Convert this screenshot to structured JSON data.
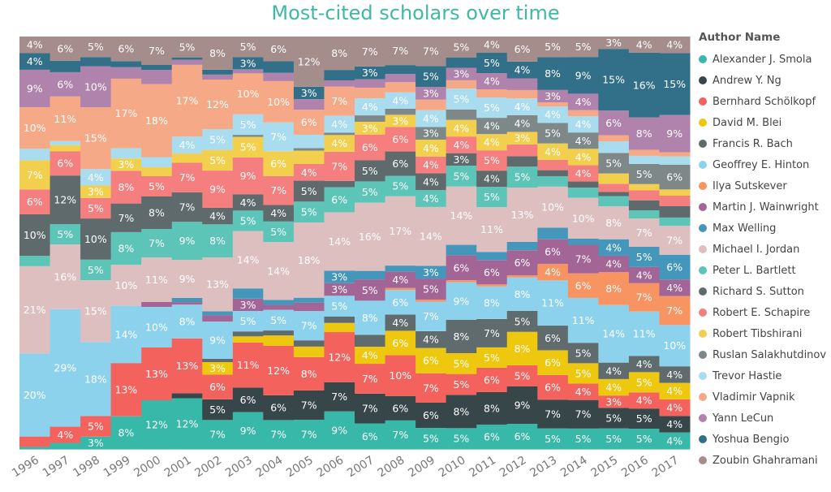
{
  "chart_data": {
    "type": "bar",
    "stacked": "100%",
    "title": "Most-cited scholars over time",
    "legend_title": "Author Name",
    "legend_placement": "right",
    "grid": false,
    "categories": [
      "1996",
      "1997",
      "1998",
      "1999",
      "2000",
      "2001",
      "2002",
      "2003",
      "2004",
      "2005",
      "2006",
      "2007",
      "2008",
      "2009",
      "2010",
      "2011",
      "2012",
      "2013",
      "2014",
      "2015",
      "2016",
      "2017"
    ],
    "series": [
      {
        "name": "Alexander J. Smola",
        "color": "#37B8A8",
        "values": [
          0.5,
          1.5,
          3,
          8,
          12,
          12,
          7,
          9,
          7,
          7,
          9,
          6,
          7,
          5,
          5,
          6,
          6,
          5,
          5,
          5,
          5,
          4
        ]
      },
      {
        "name": "Andrew Y. Ng",
        "color": "#374649",
        "values": [
          0,
          0,
          0,
          0,
          0,
          1.2,
          5,
          6,
          6,
          7,
          7,
          7,
          6,
          6,
          8,
          8,
          9,
          7,
          7,
          5,
          5,
          4
        ]
      },
      {
        "name": "Bernhard Schölkopf",
        "color": "#F4625E",
        "values": [
          2.5,
          4,
          5,
          13,
          13,
          13,
          6,
          11,
          12,
          8,
          12,
          7,
          10,
          7,
          5,
          6,
          5,
          6,
          4,
          3,
          4,
          4
        ]
      },
      {
        "name": "David M. Blei",
        "color": "#EDC80F",
        "values": [
          0,
          0,
          0,
          0,
          0,
          0,
          3,
          1.5,
          2.5,
          2.5,
          2.2,
          4,
          6,
          6,
          5,
          5,
          8,
          6,
          5,
          4,
          5,
          4
        ]
      },
      {
        "name": "Francis R. Bach",
        "color": "#5F6B6D",
        "values": [
          0,
          0,
          0,
          0,
          0,
          0,
          0.8,
          1.2,
          1.2,
          1.5,
          1.5,
          2.8,
          4,
          4,
          8,
          7,
          5,
          6,
          5,
          4,
          4,
          4
        ]
      },
      {
        "name": "Geoffrey E. Hinton",
        "color": "#8DD2EC",
        "values": [
          20,
          29,
          18,
          14,
          10,
          8,
          9,
          5,
          5,
          7,
          5,
          8,
          6,
          7,
          9,
          8,
          8,
          11,
          11,
          14,
          11,
          10
        ]
      },
      {
        "name": "Ilya Sutskever",
        "color": "#F79462",
        "values": [
          0,
          0,
          0,
          0,
          0,
          0,
          0,
          0,
          0,
          0,
          0,
          0,
          0.5,
          0.5,
          0.5,
          0.5,
          0.5,
          4,
          6,
          8,
          7,
          7
        ]
      },
      {
        "name": "Martin J. Wainwright",
        "color": "#A26596",
        "values": [
          0,
          0,
          0,
          0,
          1.2,
          0.6,
          1.5,
          3,
          1.2,
          2,
          3,
          5,
          4,
          5,
          6,
          6,
          6,
          6,
          7,
          4,
          4,
          4
        ]
      },
      {
        "name": "Max Welling",
        "color": "#4497BA",
        "values": [
          0,
          0,
          0,
          0,
          0,
          1,
          1,
          2.5,
          1.2,
          1.2,
          3,
          2,
          1.5,
          3,
          2.5,
          2,
          2,
          2.8,
          1.5,
          4,
          5,
          6
        ]
      },
      {
        "name": "Michael I. Jordan",
        "color": "#DDBFC0",
        "values": [
          21,
          16,
          15,
          10,
          11,
          9,
          13,
          14,
          14,
          18,
          14,
          16,
          17,
          14,
          14,
          11,
          13,
          10,
          10,
          8,
          7,
          7
        ]
      },
      {
        "name": "Peter L. Bartlett",
        "color": "#5CC5B8",
        "values": [
          2.5,
          5,
          5,
          8,
          7,
          9,
          8,
          5,
          5,
          5,
          6,
          5,
          5,
          4,
          5,
          5,
          5,
          2.5,
          2.5,
          2.5,
          2,
          2
        ]
      },
      {
        "name": "Richard S. Sutton",
        "color": "#5E6A6B",
        "values": [
          10,
          12,
          10,
          7,
          8,
          7,
          4,
          4,
          4,
          5,
          1.5,
          5,
          6,
          4,
          3,
          4,
          2.5,
          1.5,
          1.5,
          1,
          2.5,
          2.8
        ]
      },
      {
        "name": "Robert E. Schapire",
        "color": "#F57E7E",
        "values": [
          6,
          6,
          5,
          8,
          5,
          7,
          9,
          9,
          7,
          4,
          7,
          6,
          6,
          4,
          4,
          5,
          2.8,
          2.5,
          4,
          2,
          2.5,
          2.5
        ]
      },
      {
        "name": "Robert Tibshirani",
        "color": "#F2D04E",
        "values": [
          7,
          1.5,
          3,
          3,
          2.2,
          2.2,
          5,
          5,
          6,
          3.2,
          4,
          3,
          3,
          4,
          4,
          4,
          3,
          4,
          4,
          2.5,
          1.5,
          1.5
        ]
      },
      {
        "name": "Ruslan Salakhutdinov",
        "color": "#7E8889",
        "values": [
          0,
          0,
          0,
          0,
          0,
          0,
          0,
          0.5,
          0,
          0.6,
          0.6,
          1.5,
          1.5,
          3,
          2.5,
          4,
          4,
          5,
          4,
          5,
          5,
          6
        ]
      },
      {
        "name": "Trevor Hastie",
        "color": "#A8DCEE",
        "values": [
          2.8,
          1,
          4,
          2.5,
          2.5,
          4,
          5,
          5,
          7,
          3.2,
          4,
          4,
          4,
          4,
          5,
          5,
          4,
          4,
          4,
          2.8,
          2,
          2
        ]
      },
      {
        "name": "Vladimir Vapnik",
        "color": "#F6A987",
        "values": [
          10,
          11,
          15,
          17,
          18,
          17,
          12,
          10,
          10,
          6,
          7,
          2.5,
          2.5,
          2.5,
          2,
          2,
          2,
          1,
          1.5,
          1.5,
          1.5,
          1
        ]
      },
      {
        "name": "Yann LeCun",
        "color": "#B083AC",
        "values": [
          9,
          6,
          10,
          2.8,
          3.5,
          1.2,
          1.2,
          1,
          2,
          2.5,
          1.5,
          2,
          2,
          3,
          3,
          4,
          2.8,
          3,
          4,
          6,
          8,
          9
        ]
      },
      {
        "name": "Yoshua Bengio",
        "color": "#326F88",
        "values": [
          4,
          2.8,
          2.2,
          1.5,
          1.2,
          0.5,
          1.2,
          3,
          2.8,
          3,
          2.5,
          3,
          2.2,
          5,
          2.5,
          5,
          4,
          8,
          9,
          15,
          16,
          15
        ]
      },
      {
        "name": "Zoubin Ghahramani",
        "color": "#A58D8C",
        "values": [
          4,
          6,
          5,
          6,
          7,
          5,
          8,
          5,
          6,
          12,
          8,
          7,
          7,
          7,
          5,
          4,
          6,
          5,
          5,
          3,
          4,
          4
        ]
      }
    ]
  }
}
